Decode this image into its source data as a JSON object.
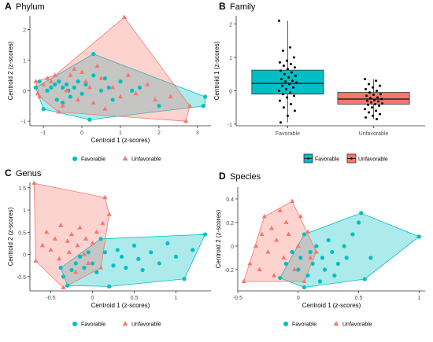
{
  "colors": {
    "favorable": "#00BFC4",
    "unfavorable": "#F8766D",
    "favorable_fill": "#00BFC4",
    "unfavorable_fill": "#F8766D",
    "axis": "#333333",
    "text": "#222222"
  },
  "legend_labels": {
    "favorable": "Favorable",
    "unfavorable": "Unfavorable"
  },
  "chart_data": [
    {
      "panel": "A",
      "title": "Phylum",
      "type": "scatter",
      "xlabel": "Centroid 1 (z-scores)",
      "ylabel": "Centroid 2 (z-scores)",
      "xlim": [
        -1.35,
        3.35
      ],
      "ylim": [
        -1.15,
        2.45
      ],
      "xticks": [
        -1,
        0,
        1,
        2,
        3
      ],
      "yticks": [
        -1,
        0,
        1,
        2
      ],
      "legend": "bottom",
      "hull_favorable": [
        [
          -1.2,
          0.1
        ],
        [
          0.3,
          1.2
        ],
        [
          3.2,
          -0.2
        ],
        [
          3.2,
          -0.5
        ],
        [
          0.2,
          -0.95
        ],
        [
          -1.0,
          -0.6
        ]
      ],
      "hull_unfavorable": [
        [
          -1.2,
          0.3
        ],
        [
          -0.7,
          0.5
        ],
        [
          1.1,
          2.4
        ],
        [
          2.8,
          -0.5
        ],
        [
          2.7,
          -1.0
        ],
        [
          -0.6,
          -0.7
        ],
        [
          -1.1,
          -0.2
        ]
      ],
      "series": [
        {
          "name": "Favorable",
          "points": [
            [
              -1.2,
              0.1
            ],
            [
              -1.1,
              0.3
            ],
            [
              -1.0,
              -0.6
            ],
            [
              -0.9,
              0.0
            ],
            [
              -0.8,
              0.1
            ],
            [
              -0.7,
              0.2
            ],
            [
              -0.65,
              -0.3
            ],
            [
              -0.6,
              0.3
            ],
            [
              -0.5,
              0.1
            ],
            [
              -0.5,
              -0.4
            ],
            [
              -0.4,
              0.2
            ],
            [
              -0.35,
              0.0
            ],
            [
              -0.3,
              -0.2
            ],
            [
              -0.2,
              0.1
            ],
            [
              -0.1,
              0.3
            ],
            [
              0.0,
              -0.1
            ],
            [
              0.1,
              0.2
            ],
            [
              0.2,
              -0.95
            ],
            [
              0.3,
              0.5
            ],
            [
              0.3,
              1.2
            ],
            [
              0.5,
              0.0
            ],
            [
              0.6,
              0.4
            ],
            [
              0.7,
              0.1
            ],
            [
              0.8,
              -0.3
            ],
            [
              1.0,
              0.3
            ],
            [
              1.3,
              0.0
            ],
            [
              1.5,
              0.1
            ],
            [
              2.0,
              -0.5
            ],
            [
              3.2,
              -0.2
            ],
            [
              3.15,
              -0.5
            ]
          ]
        },
        {
          "name": "Unfavorable",
          "points": [
            [
              -1.2,
              0.3
            ],
            [
              -1.15,
              -0.1
            ],
            [
              -1.1,
              -0.2
            ],
            [
              -1.0,
              0.2
            ],
            [
              -0.9,
              0.4
            ],
            [
              -0.8,
              0.3
            ],
            [
              -0.7,
              0.5
            ],
            [
              -0.6,
              -0.7
            ],
            [
              -0.5,
              -0.5
            ],
            [
              -0.4,
              0.0
            ],
            [
              -0.3,
              0.5
            ],
            [
              -0.2,
              0.7
            ],
            [
              -0.1,
              -0.3
            ],
            [
              0.0,
              0.6
            ],
            [
              0.1,
              0.3
            ],
            [
              0.2,
              0.1
            ],
            [
              0.3,
              -0.4
            ],
            [
              0.4,
              0.8
            ],
            [
              0.5,
              0.4
            ],
            [
              0.6,
              -0.6
            ],
            [
              0.8,
              0.1
            ],
            [
              1.0,
              -0.2
            ],
            [
              1.1,
              2.4
            ],
            [
              1.2,
              0.5
            ],
            [
              1.4,
              -0.1
            ],
            [
              1.7,
              0.2
            ],
            [
              1.9,
              -0.3
            ],
            [
              2.3,
              -0.2
            ],
            [
              2.8,
              -0.5
            ],
            [
              2.7,
              -1.0
            ]
          ]
        }
      ]
    },
    {
      "panel": "B",
      "title": "Family",
      "type": "box",
      "xlabel": "",
      "ylabel": "Centroid 1 (z-scores)",
      "categories": [
        "Favorable",
        "Unfavorable"
      ],
      "ylim": [
        -1.05,
        2.25
      ],
      "yticks": [
        -1,
        0,
        1,
        2
      ],
      "legend": "bottom",
      "boxes": [
        {
          "name": "Favorable",
          "whisker_low": -0.95,
          "q1": -0.1,
          "median": 0.22,
          "q3": 0.62,
          "whisker_high": 2.1
        },
        {
          "name": "Unfavorable",
          "whisker_low": -0.85,
          "q1": -0.4,
          "median": -0.25,
          "q3": -0.05,
          "whisker_high": 0.35
        }
      ],
      "jitter": [
        {
          "name": "Favorable",
          "values": [
            2.1,
            1.3,
            1.2,
            1.0,
            0.9,
            0.85,
            0.8,
            0.75,
            0.7,
            0.65,
            0.6,
            0.55,
            0.5,
            0.45,
            0.4,
            0.35,
            0.3,
            0.28,
            0.25,
            0.2,
            0.15,
            0.1,
            0.05,
            0.0,
            -0.05,
            -0.1,
            -0.15,
            -0.2,
            -0.3,
            -0.4,
            -0.5,
            -0.6,
            -0.75,
            -0.95
          ]
        },
        {
          "name": "Unfavorable",
          "values": [
            0.35,
            0.3,
            0.2,
            0.15,
            0.1,
            0.05,
            0.0,
            -0.05,
            -0.1,
            -0.12,
            -0.15,
            -0.2,
            -0.22,
            -0.25,
            -0.28,
            -0.3,
            -0.32,
            -0.35,
            -0.38,
            -0.4,
            -0.42,
            -0.45,
            -0.5,
            -0.55,
            -0.6,
            -0.65,
            -0.7,
            -0.75,
            -0.8,
            -0.85
          ]
        }
      ]
    },
    {
      "panel": "C",
      "title": "Genus",
      "type": "scatter",
      "xlabel": "Centroid 1 (z-scores)",
      "ylabel": "Centroid 2 (z-scores)",
      "xlim": [
        -0.75,
        1.42
      ],
      "ylim": [
        -0.82,
        1.62
      ],
      "xticks": [
        -0.5,
        0.0,
        0.5,
        1.0
      ],
      "yticks": [
        -0.5,
        0.0,
        0.5,
        1.0,
        1.5
      ],
      "legend": "bottom",
      "hull_favorable": [
        [
          -0.38,
          -0.3
        ],
        [
          0.1,
          0.35
        ],
        [
          1.35,
          0.45
        ],
        [
          1.1,
          -0.55
        ],
        [
          0.2,
          -0.72
        ],
        [
          -0.3,
          -0.7
        ]
      ],
      "hull_unfavorable": [
        [
          -0.7,
          1.6
        ],
        [
          0.15,
          1.28
        ],
        [
          0.2,
          0.9
        ],
        [
          0.1,
          -0.3
        ],
        [
          -0.35,
          -0.75
        ],
        [
          -0.68,
          -0.15
        ]
      ],
      "series": [
        {
          "name": "Favorable",
          "points": [
            [
              -0.38,
              -0.3
            ],
            [
              -0.35,
              -0.5
            ],
            [
              -0.3,
              -0.7
            ],
            [
              -0.25,
              -0.35
            ],
            [
              -0.2,
              -0.2
            ],
            [
              -0.15,
              -0.05
            ],
            [
              -0.1,
              -0.3
            ],
            [
              -0.05,
              0.05
            ],
            [
              0.0,
              -0.2
            ],
            [
              0.05,
              -0.4
            ],
            [
              0.1,
              0.35
            ],
            [
              0.15,
              0.05
            ],
            [
              0.2,
              -0.72
            ],
            [
              0.25,
              -0.25
            ],
            [
              0.3,
              0.1
            ],
            [
              0.35,
              -0.05
            ],
            [
              0.4,
              -0.3
            ],
            [
              0.5,
              0.2
            ],
            [
              0.55,
              -0.1
            ],
            [
              0.6,
              -0.35
            ],
            [
              0.7,
              0.05
            ],
            [
              0.8,
              -0.2
            ],
            [
              0.9,
              0.25
            ],
            [
              1.0,
              -0.05
            ],
            [
              1.1,
              -0.55
            ],
            [
              1.2,
              0.1
            ],
            [
              1.35,
              0.45
            ]
          ]
        },
        {
          "name": "Unfavorable",
          "points": [
            [
              -0.7,
              1.6
            ],
            [
              -0.68,
              -0.15
            ],
            [
              -0.6,
              0.2
            ],
            [
              -0.55,
              0.5
            ],
            [
              -0.5,
              0.1
            ],
            [
              -0.45,
              0.35
            ],
            [
              -0.4,
              -0.1
            ],
            [
              -0.38,
              0.65
            ],
            [
              -0.35,
              -0.75
            ],
            [
              -0.3,
              0.3
            ],
            [
              -0.28,
              0.05
            ],
            [
              -0.25,
              0.45
            ],
            [
              -0.2,
              -0.4
            ],
            [
              -0.18,
              0.2
            ],
            [
              -0.15,
              0.6
            ],
            [
              -0.1,
              0.0
            ],
            [
              -0.08,
              0.35
            ],
            [
              -0.05,
              -0.2
            ],
            [
              0.0,
              0.25
            ],
            [
              0.05,
              0.5
            ],
            [
              0.1,
              -0.3
            ],
            [
              0.12,
              0.7
            ],
            [
              0.15,
              1.28
            ],
            [
              0.2,
              0.9
            ]
          ]
        }
      ]
    },
    {
      "panel": "D",
      "title": "Species",
      "type": "scatter",
      "xlabel": "Centroid 1 (z-scores)",
      "ylabel": "Centroid 2 (z-scores)",
      "xlim": [
        -0.5,
        1.05
      ],
      "ylim": [
        -0.38,
        0.5
      ],
      "xticks": [
        -0.5,
        0.0,
        0.5,
        1.0
      ],
      "yticks": [
        -0.2,
        0.0,
        0.2,
        0.4
      ],
      "legend": "bottom",
      "hull_favorable": [
        [
          -0.15,
          -0.27
        ],
        [
          0.05,
          0.1
        ],
        [
          0.52,
          0.28
        ],
        [
          1.0,
          0.08
        ],
        [
          0.55,
          -0.28
        ],
        [
          0.05,
          -0.35
        ]
      ],
      "hull_unfavorable": [
        [
          -0.28,
          0.25
        ],
        [
          -0.05,
          0.38
        ],
        [
          0.15,
          -0.05
        ],
        [
          0.05,
          -0.3
        ],
        [
          -0.45,
          -0.3
        ]
      ],
      "series": [
        {
          "name": "Favorable",
          "points": [
            [
              -0.15,
              -0.27
            ],
            [
              -0.1,
              -0.15
            ],
            [
              -0.05,
              -0.05
            ],
            [
              0.0,
              -0.2
            ],
            [
              0.02,
              -0.1
            ],
            [
              0.05,
              0.1
            ],
            [
              0.05,
              -0.35
            ],
            [
              0.08,
              -0.25
            ],
            [
              0.1,
              -0.05
            ],
            [
              0.12,
              -0.15
            ],
            [
              0.15,
              0.0
            ],
            [
              0.18,
              -0.3
            ],
            [
              0.2,
              -0.1
            ],
            [
              0.22,
              -0.2
            ],
            [
              0.25,
              0.05
            ],
            [
              0.28,
              -0.05
            ],
            [
              0.3,
              -0.25
            ],
            [
              0.33,
              -0.15
            ],
            [
              0.38,
              0.0
            ],
            [
              0.4,
              -0.1
            ],
            [
              0.45,
              0.1
            ],
            [
              0.5,
              0.2
            ],
            [
              0.52,
              0.28
            ],
            [
              0.55,
              -0.28
            ],
            [
              0.6,
              -0.1
            ],
            [
              1.0,
              0.08
            ]
          ]
        },
        {
          "name": "Unfavorable",
          "points": [
            [
              -0.45,
              -0.3
            ],
            [
              -0.4,
              -0.15
            ],
            [
              -0.35,
              0.0
            ],
            [
              -0.32,
              -0.2
            ],
            [
              -0.3,
              0.1
            ],
            [
              -0.28,
              0.25
            ],
            [
              -0.25,
              -0.05
            ],
            [
              -0.22,
              0.15
            ],
            [
              -0.2,
              -0.25
            ],
            [
              -0.18,
              0.05
            ],
            [
              -0.15,
              0.3
            ],
            [
              -0.12,
              -0.1
            ],
            [
              -0.1,
              0.2
            ],
            [
              -0.08,
              0.1
            ],
            [
              -0.05,
              0.38
            ],
            [
              -0.03,
              -0.2
            ],
            [
              0.0,
              0.0
            ],
            [
              0.02,
              0.25
            ],
            [
              0.05,
              -0.3
            ],
            [
              0.08,
              0.12
            ],
            [
              0.1,
              -0.1
            ],
            [
              0.15,
              -0.05
            ]
          ]
        }
      ]
    }
  ]
}
